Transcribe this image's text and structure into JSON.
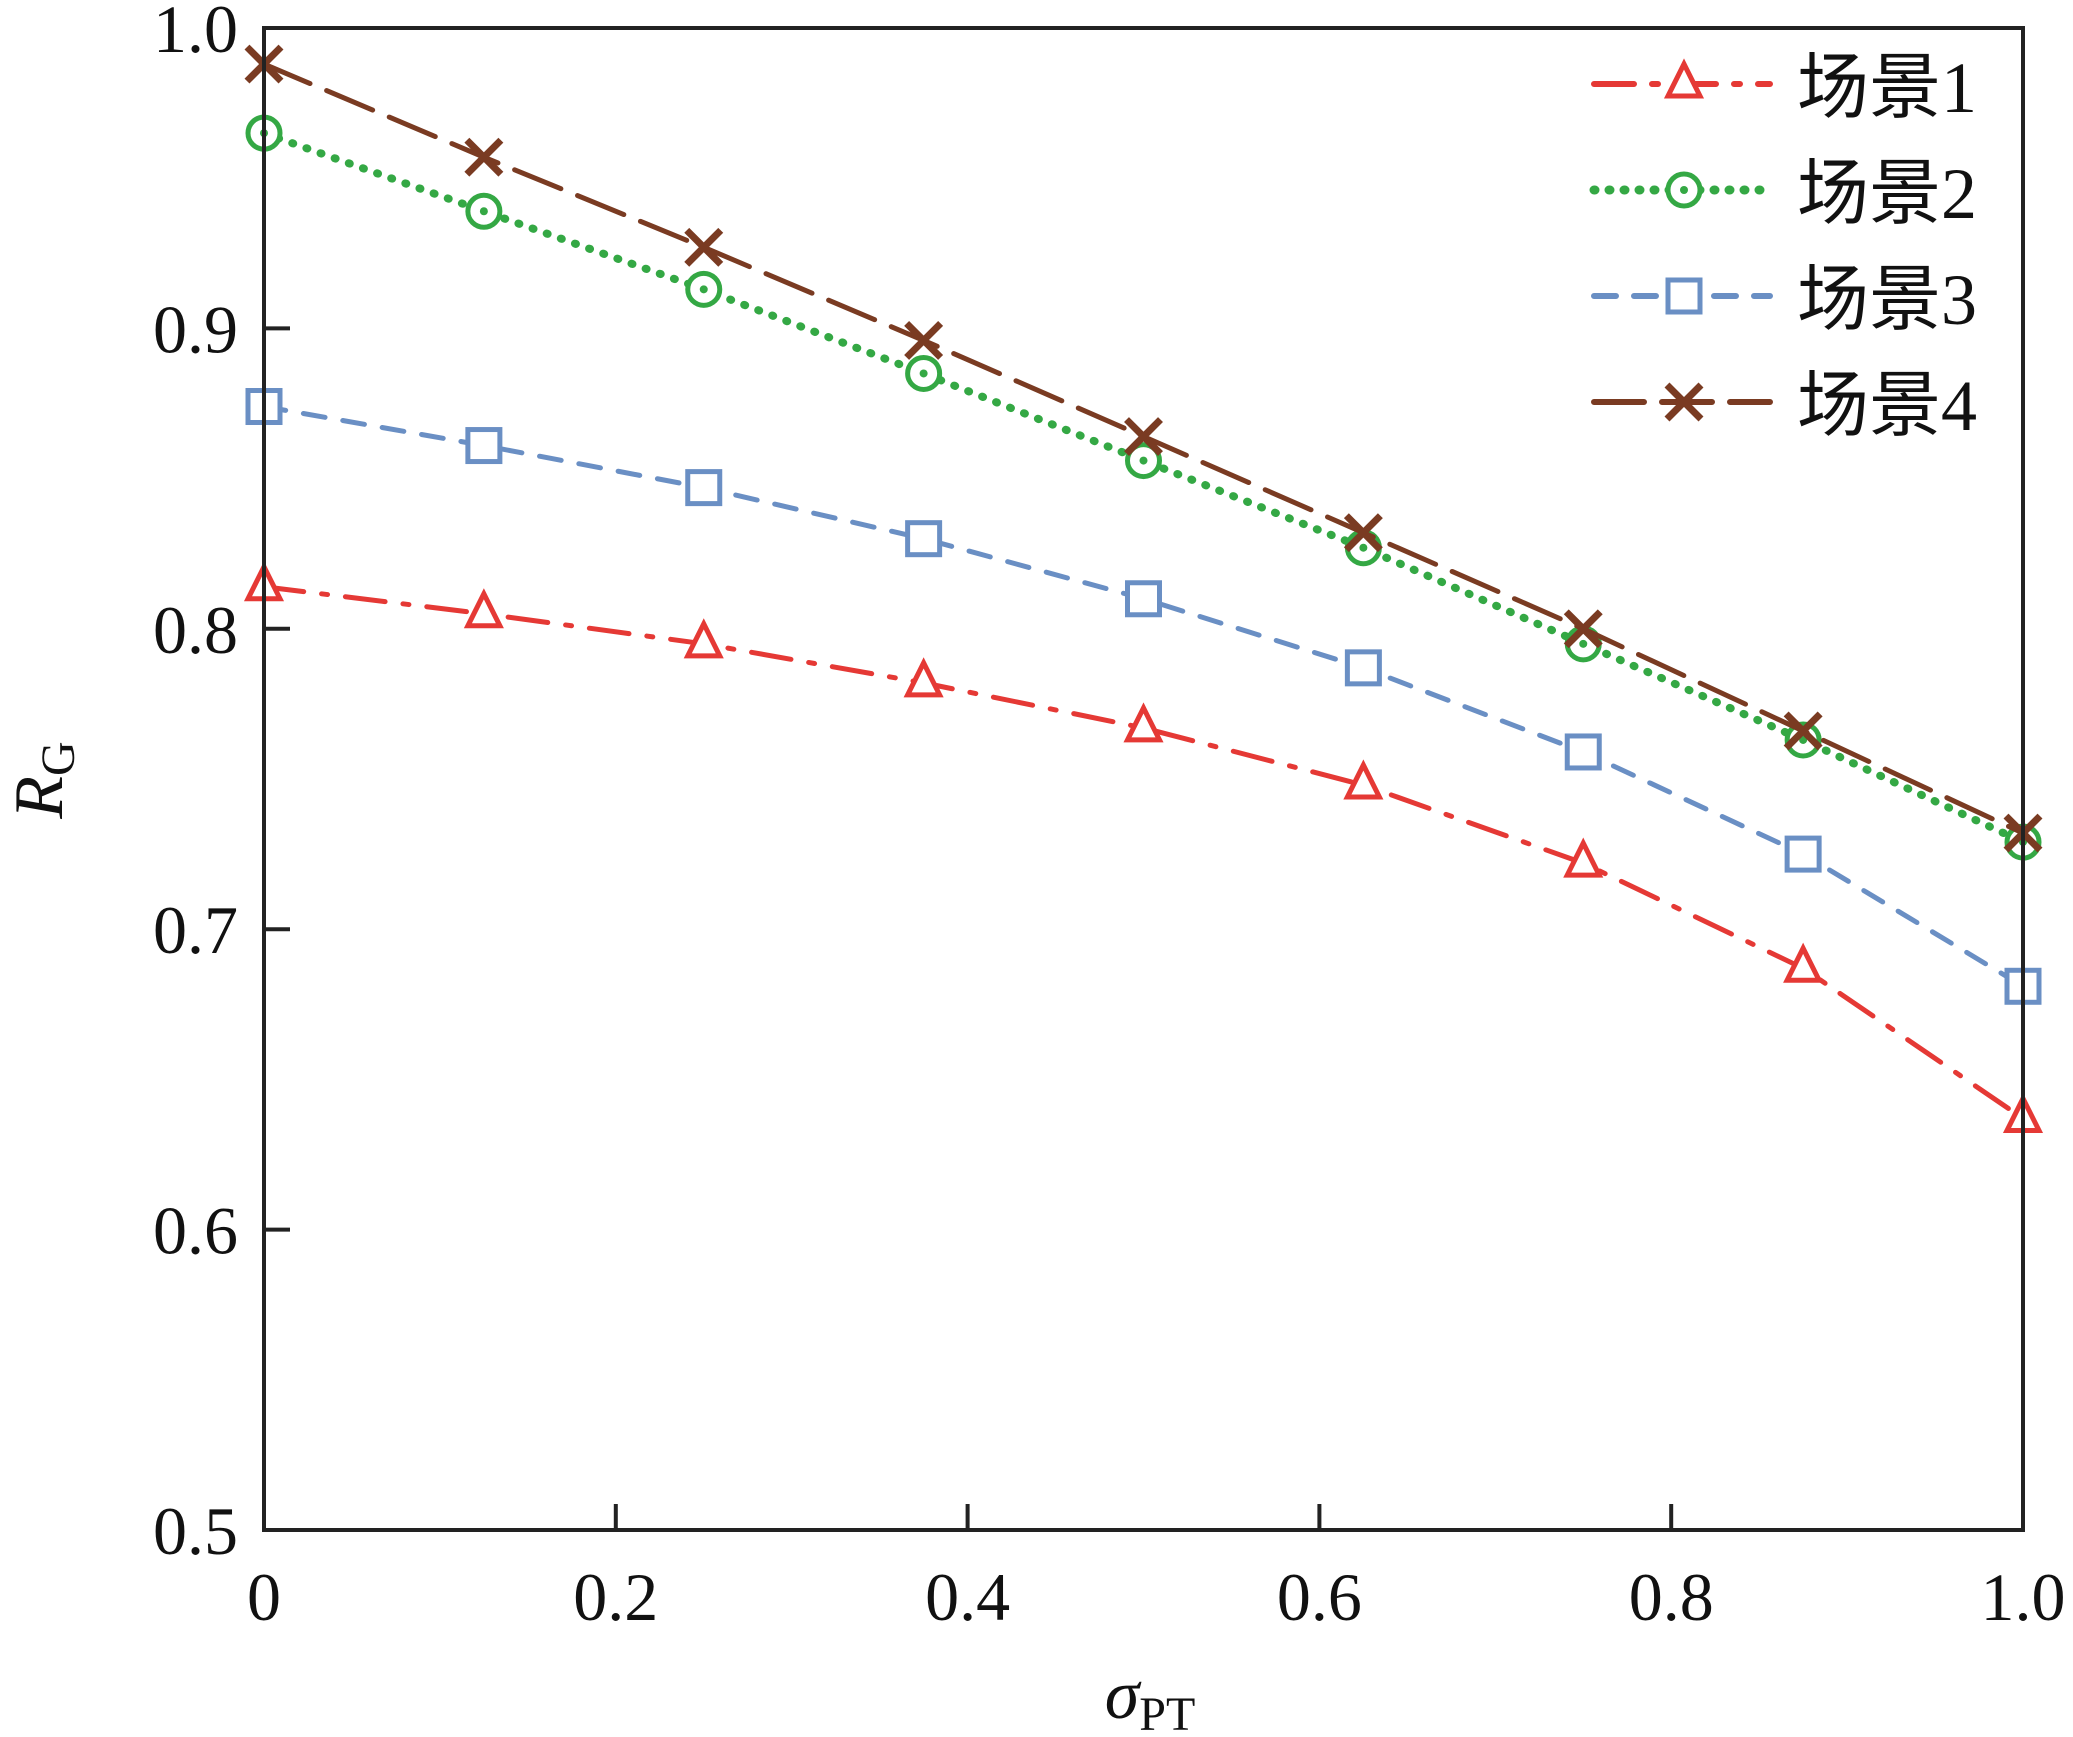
{
  "chart_data": {
    "type": "line",
    "title": "",
    "xlabel": {
      "main": "σ",
      "sub": "PT"
    },
    "ylabel": {
      "main": "R",
      "sub": "G"
    },
    "xlim": [
      0,
      1.0
    ],
    "ylim": [
      0.5,
      1.0
    ],
    "xticks": [
      0,
      0.2,
      0.4,
      0.6,
      0.8,
      1.0
    ],
    "xtick_labels": [
      "0",
      "0.2",
      "0.4",
      "0.6",
      "0.8",
      "1.0"
    ],
    "yticks": [
      0.5,
      0.6,
      0.7,
      0.8,
      0.9,
      1.0
    ],
    "ytick_labels": [
      "0.5",
      "0.6",
      "0.7",
      "0.8",
      "0.9",
      "1.0"
    ],
    "grid": false,
    "legend_position": "top-right",
    "x": [
      0,
      0.125,
      0.25,
      0.375,
      0.5,
      0.625,
      0.75,
      0.875,
      1.0
    ],
    "series": [
      {
        "name": "场景1",
        "color": "#e53935",
        "marker": "triangle",
        "dash": "dashdot",
        "values": [
          0.814,
          0.805,
          0.795,
          0.782,
          0.767,
          0.748,
          0.722,
          0.687,
          0.637
        ]
      },
      {
        "name": "场景2",
        "color": "#34a844",
        "marker": "circle-dot",
        "dash": "dotted",
        "values": [
          0.965,
          0.939,
          0.913,
          0.885,
          0.856,
          0.827,
          0.795,
          0.763,
          0.729
        ]
      },
      {
        "name": "场景3",
        "color": "#6a8fc4",
        "marker": "square",
        "dash": "dashed",
        "values": [
          0.874,
          0.861,
          0.847,
          0.83,
          0.81,
          0.787,
          0.759,
          0.725,
          0.681
        ]
      },
      {
        "name": "场景4",
        "color": "#7a3b22",
        "marker": "x",
        "dash": "longdash",
        "values": [
          0.988,
          0.957,
          0.927,
          0.896,
          0.864,
          0.832,
          0.8,
          0.766,
          0.732
        ]
      }
    ]
  }
}
